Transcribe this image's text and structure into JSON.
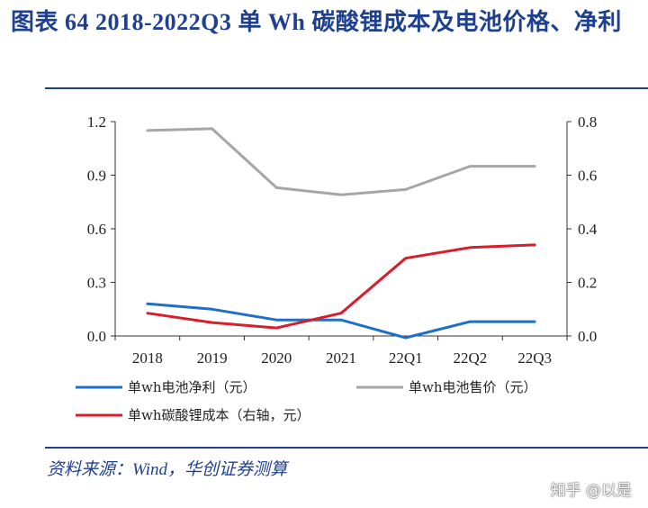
{
  "title": "图表 64 2018-2022Q3 单 Wh 碳酸锂成本及电池价格、净利",
  "source": "资料来源：Wind，华创证券测算",
  "watermark": "知乎 @以是",
  "chart_data": {
    "type": "line",
    "categories": [
      "2018",
      "2019",
      "2020",
      "2021",
      "22Q1",
      "22Q2",
      "22Q3"
    ],
    "y_left": {
      "min": 0,
      "max": 1.2,
      "ticks": [
        "0.0",
        "0.3",
        "0.6",
        "0.9",
        "1.2"
      ]
    },
    "y_right": {
      "min": 0,
      "max": 0.8,
      "ticks": [
        "0.0",
        "0.2",
        "0.4",
        "0.6",
        "0.8"
      ]
    },
    "grid": false,
    "legend_position": "bottom",
    "series": [
      {
        "name": "单wh电池净利（元）",
        "axis": "left",
        "color": "#1f6fc6",
        "values": [
          0.18,
          0.15,
          0.09,
          0.09,
          -0.01,
          0.08,
          0.08
        ]
      },
      {
        "name": "单wh电池售价（元）",
        "axis": "left",
        "color": "#a6a6a6",
        "values": [
          1.15,
          1.16,
          0.83,
          0.79,
          0.82,
          0.95,
          0.95
        ]
      },
      {
        "name": "单wh碳酸锂成本（右轴，元）",
        "axis": "right",
        "color": "#d71e2a",
        "values": [
          0.085,
          0.05,
          0.03,
          0.085,
          0.29,
          0.33,
          0.34
        ]
      }
    ]
  }
}
